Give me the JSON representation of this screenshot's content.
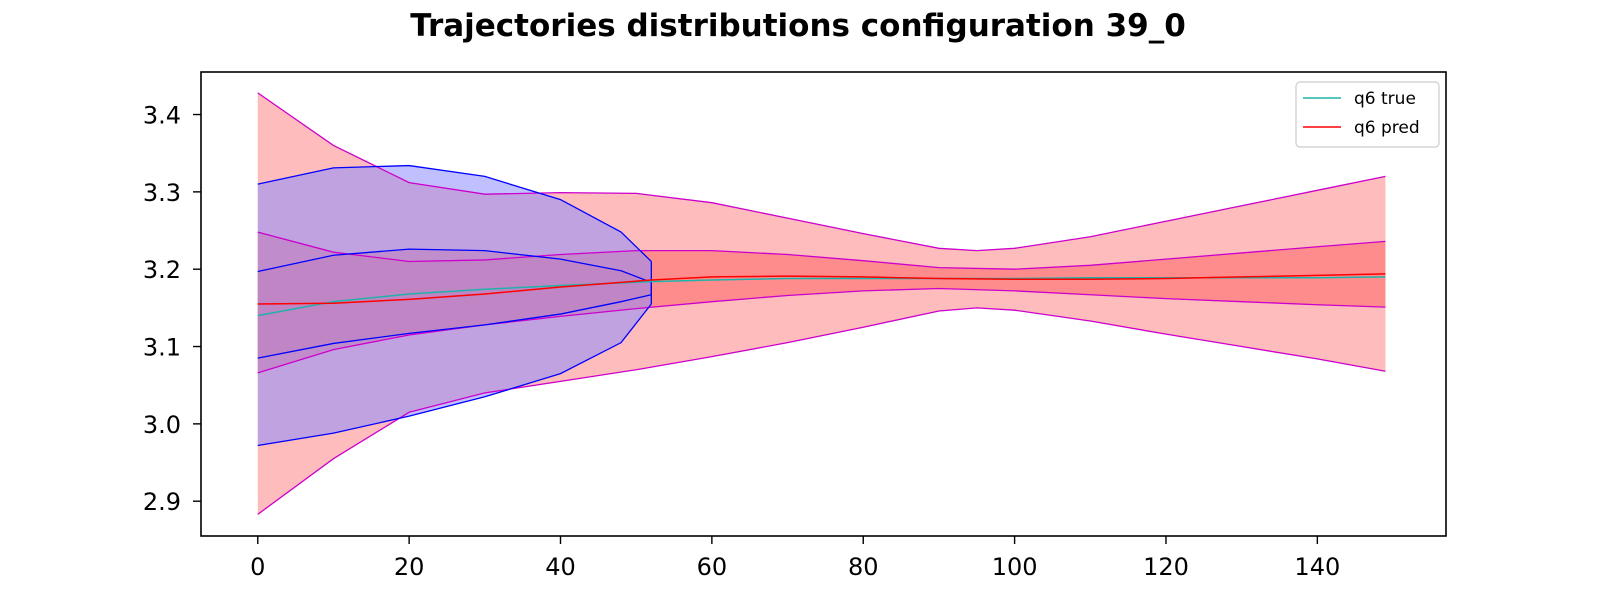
{
  "chart_data": {
    "type": "line",
    "title": "Trajectories distributions configuration  39_0",
    "xlabel": "",
    "ylabel": "",
    "xlim": [
      -7.5,
      157
    ],
    "ylim": [
      2.855,
      3.455
    ],
    "xticks": [
      0,
      20,
      40,
      60,
      80,
      100,
      120,
      140
    ],
    "yticks": [
      2.9,
      3.0,
      3.1,
      3.2,
      3.3,
      3.4
    ],
    "xtick_labels": [
      "0",
      "20",
      "40",
      "60",
      "80",
      "100",
      "120",
      "140"
    ],
    "ytick_labels": [
      "2.9",
      "3.0",
      "3.1",
      "3.2",
      "3.3",
      "3.4"
    ],
    "grid": false,
    "legend_position": "top-right",
    "colors": {
      "true_line": "#20b2aa",
      "pred_line": "#ff0000",
      "pred_band_fill": "#ffbcbc",
      "pred_inner_fill": "#ff8c8c",
      "pred_band_edge": "#cc00cc",
      "true_band_fill": "#8c8cff",
      "true_band_edge": "#0000ff",
      "overlap_fill": "#c080c0"
    },
    "series": [
      {
        "name": "q6 true",
        "x": [
          0,
          10,
          20,
          30,
          40,
          52,
          60,
          70,
          80,
          90,
          100,
          110,
          120,
          130,
          140,
          149
        ],
        "values": [
          3.14,
          3.158,
          3.168,
          3.174,
          3.179,
          3.184,
          3.186,
          3.188,
          3.188,
          3.188,
          3.188,
          3.189,
          3.189,
          3.189,
          3.189,
          3.19
        ]
      },
      {
        "name": "q6 pred",
        "x": [
          0,
          10,
          20,
          30,
          40,
          52,
          60,
          70,
          80,
          90,
          100,
          110,
          120,
          130,
          140,
          149
        ],
        "values": [
          3.155,
          3.156,
          3.161,
          3.168,
          3.177,
          3.186,
          3.19,
          3.191,
          3.19,
          3.188,
          3.187,
          3.187,
          3.188,
          3.19,
          3.192,
          3.194
        ]
      }
    ],
    "pred_band_outer": {
      "x": [
        0,
        10,
        20,
        30,
        40,
        50,
        60,
        70,
        80,
        90,
        95,
        100,
        110,
        120,
        130,
        140,
        149
      ],
      "upper": [
        3.428,
        3.36,
        3.312,
        3.297,
        3.299,
        3.298,
        3.286,
        3.266,
        3.246,
        3.227,
        3.224,
        3.227,
        3.242,
        3.262,
        3.282,
        3.302,
        3.32
      ],
      "lower": [
        2.883,
        2.955,
        3.015,
        3.04,
        3.055,
        3.07,
        3.087,
        3.105,
        3.125,
        3.146,
        3.15,
        3.147,
        3.133,
        3.116,
        3.1,
        3.084,
        3.068
      ]
    },
    "pred_band_inner": {
      "x": [
        0,
        10,
        20,
        30,
        40,
        50,
        60,
        70,
        80,
        90,
        100,
        110,
        120,
        130,
        140,
        149
      ],
      "upper": [
        3.248,
        3.222,
        3.21,
        3.212,
        3.219,
        3.224,
        3.224,
        3.219,
        3.211,
        3.202,
        3.2,
        3.205,
        3.213,
        3.221,
        3.229,
        3.236
      ],
      "lower": [
        3.066,
        3.096,
        3.115,
        3.128,
        3.139,
        3.149,
        3.158,
        3.166,
        3.172,
        3.175,
        3.172,
        3.167,
        3.162,
        3.158,
        3.154,
        3.151
      ]
    },
    "true_band_outer": {
      "x": [
        0,
        10,
        20,
        30,
        40,
        48,
        52
      ],
      "upper": [
        3.31,
        3.331,
        3.334,
        3.32,
        3.29,
        3.248,
        3.21
      ],
      "lower": [
        2.972,
        2.988,
        3.01,
        3.035,
        3.065,
        3.105,
        3.155
      ]
    },
    "true_band_inner": {
      "x": [
        0,
        10,
        20,
        30,
        40,
        48,
        52
      ],
      "upper": [
        3.197,
        3.218,
        3.226,
        3.224,
        3.213,
        3.198,
        3.183
      ],
      "lower": [
        3.085,
        3.104,
        3.117,
        3.128,
        3.142,
        3.158,
        3.167
      ]
    }
  }
}
